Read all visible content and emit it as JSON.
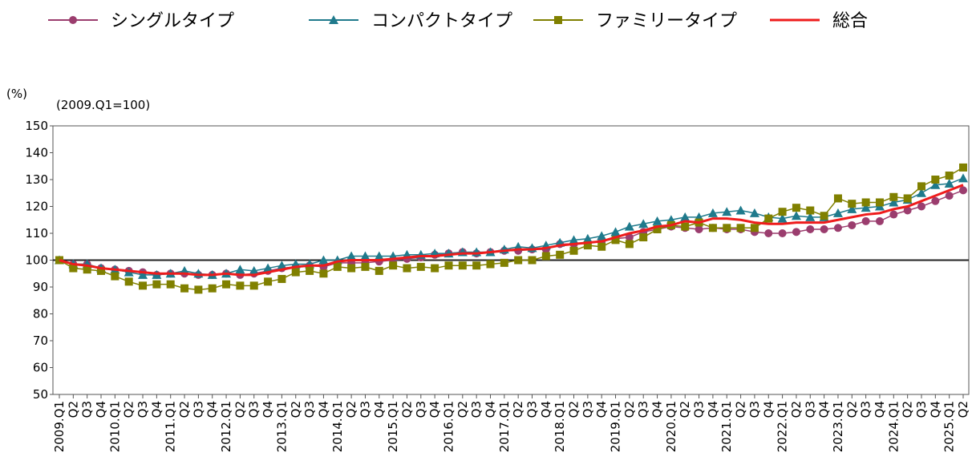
{
  "chart_data": {
    "type": "line",
    "y_unit_label": "(%)",
    "subtitle": "(2009.Q1=100)",
    "categories": [
      "2009.Q1",
      "Q2",
      "Q3",
      "Q4",
      "2010.Q1",
      "Q2",
      "Q3",
      "Q4",
      "2011.Q1",
      "Q2",
      "Q3",
      "Q4",
      "2012.Q1",
      "Q2",
      "Q3",
      "Q4",
      "2013.Q1",
      "Q2",
      "Q3",
      "Q4",
      "2014.Q1",
      "Q2",
      "Q3",
      "Q4",
      "2015.Q1",
      "Q2",
      "Q3",
      "Q4",
      "2016.Q1",
      "Q2",
      "Q3",
      "Q4",
      "2017.Q1",
      "Q2",
      "Q3",
      "Q4",
      "2018.Q1",
      "Q2",
      "Q3",
      "Q4",
      "2019.Q1",
      "Q2",
      "Q3",
      "Q4",
      "2020.Q1",
      "Q2",
      "Q3",
      "Q4",
      "2021.Q1",
      "Q2",
      "Q3",
      "Q4",
      "2022.Q1",
      "Q2",
      "Q3",
      "Q4",
      "2023.Q1",
      "Q2",
      "Q3",
      "Q4",
      "2024.Q1",
      "Q2",
      "Q3",
      "Q4",
      "2025.Q1",
      "Q2"
    ],
    "series": [
      {
        "name": "シングルタイプ",
        "color": "#9b3d6e",
        "marker": "circle",
        "values": [
          100,
          98.5,
          98.5,
          97,
          96.5,
          96,
          95.5,
          94.5,
          95,
          95,
          94.5,
          94.5,
          95,
          94.5,
          95,
          96,
          97,
          97.5,
          98,
          97.5,
          99,
          99,
          99,
          99.5,
          100,
          100.5,
          101,
          102,
          102.5,
          103,
          102.5,
          103,
          103.5,
          103.5,
          104,
          104,
          106,
          106,
          106.5,
          107,
          108,
          108.5,
          110.5,
          111.5,
          112.5,
          112,
          111.5,
          112,
          111.5,
          111.5,
          110.5,
          110,
          110,
          110.5,
          111.5,
          111.5,
          112,
          113,
          114.5,
          114.5,
          117,
          118.5,
          120,
          122,
          124,
          126
        ]
      },
      {
        "name": "コンパクトタイプ",
        "color": "#1f7a8c",
        "marker": "triangle",
        "values": [
          100,
          98.5,
          98.5,
          97,
          96.5,
          95.5,
          94.5,
          94.5,
          95,
          96,
          95,
          94.5,
          95,
          96.5,
          96,
          97,
          98,
          98.5,
          98.5,
          100,
          100,
          101.5,
          101.5,
          101.5,
          101.5,
          102,
          102,
          102.5,
          102.5,
          103,
          103,
          103,
          104,
          105,
          104.5,
          105.5,
          106.5,
          107.5,
          108,
          109,
          110.5,
          112.5,
          113.5,
          114.5,
          115,
          116,
          116,
          117.5,
          118,
          118.5,
          117.5,
          116,
          115.5,
          116.5,
          116,
          116,
          117.5,
          119,
          119.5,
          120,
          121.5,
          122.5,
          125,
          128,
          128.5,
          130.5
        ]
      },
      {
        "name": "ファミリータイプ",
        "color": "#808000",
        "marker": "square",
        "values": [
          100,
          97,
          96.5,
          96,
          94,
          92,
          90.5,
          91,
          91,
          89.5,
          89,
          89.5,
          91,
          90.5,
          90.5,
          92,
          93,
          95.5,
          96,
          95,
          97.5,
          97,
          97.5,
          96,
          98,
          97,
          97.5,
          97,
          98,
          98,
          98,
          98.5,
          99,
          100,
          100,
          101.5,
          102,
          103.5,
          105.5,
          105,
          107.5,
          106,
          108.5,
          111.5,
          113,
          112.5,
          114,
          112,
          112,
          112,
          112,
          115.5,
          118,
          119.5,
          118.5,
          116.5,
          123,
          121,
          121.5,
          121.5,
          123.5,
          123,
          127.5,
          130,
          131.5,
          134.5
        ]
      },
      {
        "name": "総合",
        "color": "#ee1c1c",
        "marker": "none",
        "values": [
          100,
          98.5,
          98,
          97,
          96.5,
          96,
          95.5,
          95,
          95,
          95,
          94.5,
          94.5,
          95,
          94.5,
          94.5,
          95.5,
          96.5,
          97.5,
          98,
          98,
          99.5,
          100,
          100,
          100,
          100.5,
          101,
          101.5,
          101.5,
          102,
          102.5,
          102.5,
          103,
          103.5,
          104,
          104,
          104.5,
          105.5,
          106,
          106.5,
          107,
          108.5,
          110,
          111,
          112.5,
          113,
          114.5,
          114,
          115.5,
          115.5,
          115,
          114,
          113.5,
          113.5,
          114,
          114,
          114,
          115,
          116,
          117,
          117.5,
          119,
          120,
          122,
          124,
          126,
          128
        ]
      }
    ],
    "ylim": [
      50,
      150
    ],
    "yticks": [
      50,
      60,
      70,
      80,
      90,
      100,
      110,
      120,
      130,
      140,
      150
    ],
    "hline": 100,
    "grid": false
  }
}
